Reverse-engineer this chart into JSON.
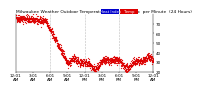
{
  "title": "Milwaukee Weather Outdoor Temperature",
  "title2": "vs Heat Index",
  "title3": "per Minute",
  "title4": "(24 Hours)",
  "background_color": "#ffffff",
  "temp_color": "#dd0000",
  "heat_index_color": "#0000cc",
  "ylim": [
    20,
    80
  ],
  "xlim": [
    0,
    1440
  ],
  "legend_temp_label": "Temp",
  "legend_hi_label": "Heat Index",
  "grid_color": "#bbbbbb",
  "num_points": 1440,
  "seed": 42,
  "start_temp": 76,
  "peak_temp": 76,
  "drop_start": 310,
  "drop_end": 550,
  "drop_end_temp": 28,
  "end_temp": 30,
  "noise_scale": 2.0,
  "tick_fontsize": 3.0,
  "title_fontsize": 3.2,
  "legend_fontsize": 2.8,
  "yticks": [
    20,
    30,
    40,
    50,
    60,
    70
  ],
  "ytick_labels": [
    "20",
    "30",
    "40",
    "50",
    "60",
    "70"
  ],
  "xtick_positions": [
    0,
    180,
    360,
    540,
    720,
    900,
    1080,
    1260,
    1440
  ],
  "xtick_labels": [
    "12:01\nAM",
    "3:01\nAM",
    "6:01\nAM",
    "9:01\nAM",
    "12:01\nPM",
    "3:01\nPM",
    "6:01\nPM",
    "9:01\nPM",
    "12:01\nAM"
  ],
  "vline_positions": [
    360,
    720,
    1080
  ],
  "marker_size": 0.8,
  "dot_alpha": 0.9
}
